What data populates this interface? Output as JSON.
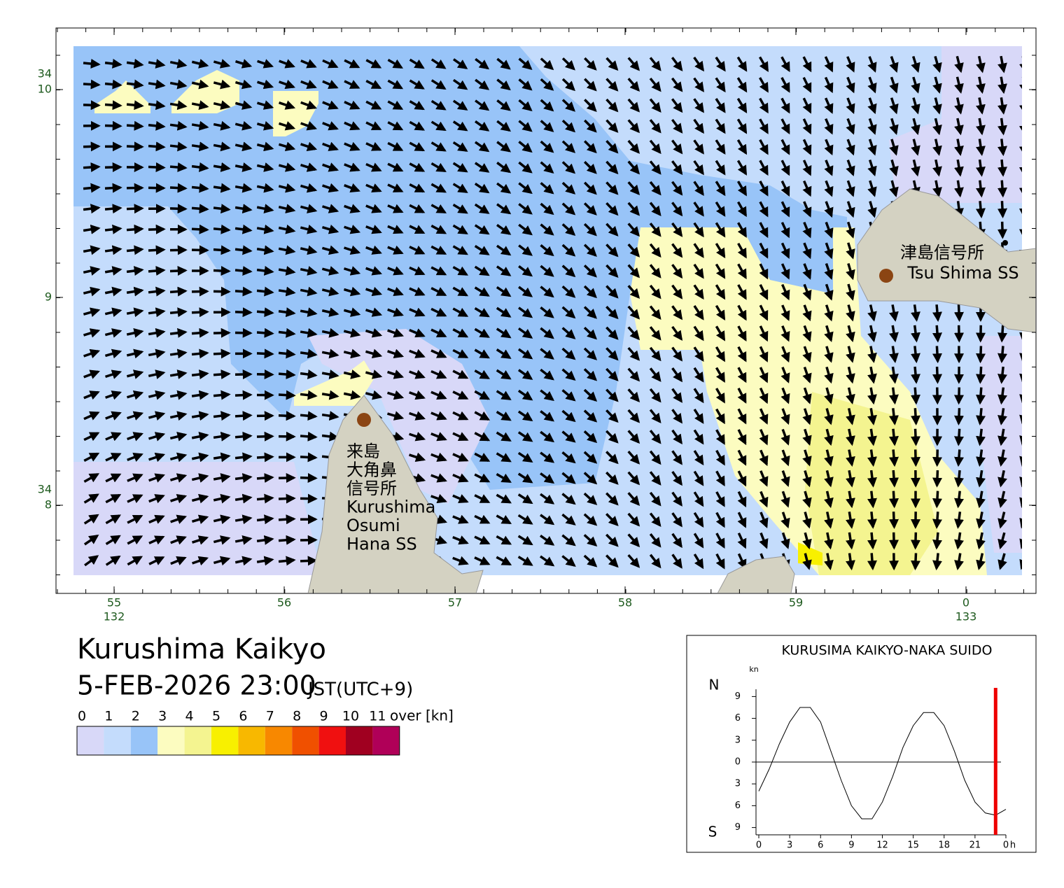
{
  "map": {
    "lat_labels": [
      {
        "deg": "34",
        "min": "10"
      },
      {
        "min": "9"
      },
      {
        "deg": "34",
        "min": "8"
      }
    ],
    "lon_labels": [
      {
        "min": "55",
        "deg": "132"
      },
      {
        "min": "56"
      },
      {
        "min": "57"
      },
      {
        "min": "58"
      },
      {
        "min": "59"
      },
      {
        "min": "0",
        "deg": "133"
      }
    ],
    "stations": [
      {
        "lines": [
          "津島信号所",
          "Tsu Shima SS"
        ]
      },
      {
        "lines": [
          "来島",
          "大角鼻",
          "信号所",
          "Kurushima",
          "Osumi",
          "Hana SS"
        ]
      }
    ],
    "land_color": "#d4d2c2",
    "station_color": "#8b4513"
  },
  "header": {
    "title": "Kurushima Kaikyo",
    "datetime": "5-FEB-2026 23:00",
    "timezone": "JST(UTC+9)"
  },
  "legend": {
    "labels": [
      "0",
      "1",
      "2",
      "3",
      "4",
      "5",
      "6",
      "7",
      "8",
      "9",
      "10",
      "11"
    ],
    "unit": "over [kn]",
    "colors": [
      "#d8d8f8",
      "#c4dcfc",
      "#98c4f8",
      "#fcfcc0",
      "#f4f490",
      "#f8f000",
      "#f8b800",
      "#f88800",
      "#f05000",
      "#f01010",
      "#a00020",
      "#b00058"
    ]
  },
  "chart_data": {
    "type": "line",
    "title": "KURUSIMA KAIKYO-NAKA SUIDO",
    "y_unit": "kn",
    "north_label": "N",
    "south_label": "S",
    "x_unit": "h",
    "x": [
      0,
      1,
      2,
      3,
      4,
      5,
      6,
      7,
      8,
      9,
      10,
      11,
      12,
      13,
      14,
      15,
      16,
      17,
      18,
      19,
      20,
      21,
      22,
      23,
      24
    ],
    "values": [
      -4,
      -1,
      2.5,
      5.5,
      7.5,
      7.5,
      5.5,
      1.5,
      -2.5,
      -6,
      -7.8,
      -7.8,
      -5.5,
      -2,
      2,
      5,
      6.8,
      6.8,
      5,
      1.5,
      -2.5,
      -5.5,
      -7,
      -7.3,
      -6.5
    ],
    "color": "#000000",
    "now": 23,
    "now_color": "#ee0000",
    "xlim": [
      0,
      24
    ],
    "ylim": [
      -10,
      10
    ],
    "xticks": [
      0,
      3,
      6,
      9,
      12,
      15,
      18,
      21,
      {
        "value": 24,
        "label": "0"
      }
    ],
    "yticks": [
      {
        "value": 9,
        "label": "9"
      },
      {
        "value": 6,
        "label": "6"
      },
      {
        "value": 3,
        "label": "3"
      },
      0,
      {
        "value": -3,
        "label": "3"
      },
      {
        "value": -6,
        "label": "6"
      },
      {
        "value": -9,
        "label": "9"
      }
    ]
  }
}
